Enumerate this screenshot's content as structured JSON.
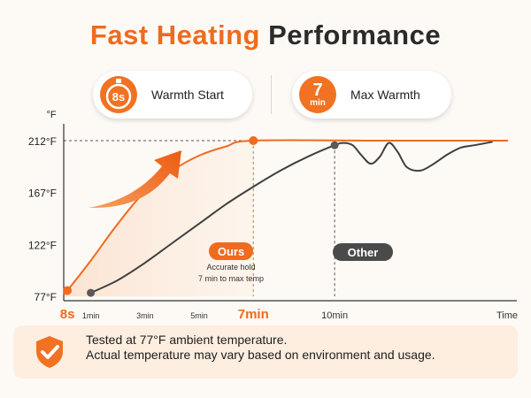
{
  "header": {
    "title_accent": "Fast Heating",
    "title_rest": "Performance"
  },
  "badges": {
    "warmth_start": {
      "icon_text": "8s",
      "label": "Warmth Start"
    },
    "max_warmth": {
      "icon_big": "7",
      "icon_small": "min",
      "label": "Max Warmth"
    }
  },
  "chart_data": {
    "type": "line",
    "ylabel": "°F",
    "xlabel": "Time",
    "yticks": [
      {
        "value": 77,
        "label": "77°F"
      },
      {
        "value": 122,
        "label": "122°F"
      },
      {
        "value": 167,
        "label": "167°F"
      },
      {
        "value": 212,
        "label": "212°F"
      }
    ],
    "ylim": [
      77,
      212
    ],
    "xticks": [
      {
        "value": 8,
        "label": "8s",
        "emphasis": "orange"
      },
      {
        "value": 60,
        "label": "1min"
      },
      {
        "value": 180,
        "label": "3min"
      },
      {
        "value": 300,
        "label": "5min"
      },
      {
        "value": 420,
        "label": "7min",
        "emphasis": "orange"
      },
      {
        "value": 600,
        "label": "10min"
      }
    ],
    "series": [
      {
        "name": "Ours",
        "color": "#ef6b1e",
        "points": [
          [
            0,
            79
          ],
          [
            8,
            82
          ],
          [
            60,
            108
          ],
          [
            120,
            140
          ],
          [
            180,
            168
          ],
          [
            240,
            186
          ],
          [
            300,
            199
          ],
          [
            360,
            207
          ],
          [
            420,
            212
          ],
          [
            700,
            212
          ],
          [
            984,
            212
          ]
        ],
        "markers": [
          [
            8,
            82
          ],
          [
            420,
            212
          ]
        ]
      },
      {
        "name": "Other",
        "color": "#3f3f3f",
        "points": [
          [
            60,
            80
          ],
          [
            120,
            91
          ],
          [
            180,
            106
          ],
          [
            240,
            123
          ],
          [
            300,
            140
          ],
          [
            360,
            157
          ],
          [
            420,
            172
          ],
          [
            480,
            186
          ],
          [
            540,
            198
          ],
          [
            600,
            208
          ],
          [
            620,
            210
          ],
          [
            640,
            208
          ],
          [
            660,
            199
          ],
          [
            680,
            192
          ],
          [
            700,
            198
          ],
          [
            720,
            210
          ],
          [
            740,
            202
          ],
          [
            760,
            189
          ],
          [
            790,
            186
          ],
          [
            820,
            192
          ],
          [
            850,
            200
          ],
          [
            880,
            206
          ],
          [
            910,
            208
          ],
          [
            950,
            211
          ]
        ],
        "markers": [
          [
            60,
            80
          ],
          [
            600,
            208
          ]
        ]
      }
    ],
    "annotations": [
      {
        "label": "Ours",
        "note_line1": "Accurate hold",
        "note_line2": "7 min to max temp",
        "color": "#ef6b1e"
      },
      {
        "label": "Other",
        "color": "#4a4a4a"
      }
    ],
    "reference_lines": [
      {
        "type": "horizontal",
        "value": 212,
        "style": "dashed"
      },
      {
        "type": "vertical",
        "value": 420,
        "style": "dashed",
        "color": "#ef6b1e"
      },
      {
        "type": "vertical",
        "value": 600,
        "style": "dashed"
      }
    ],
    "grid": false
  },
  "footer": {
    "line1": "Tested at 77°F ambient temperature.",
    "line2": "Actual temperature may vary based on environment and usage."
  },
  "colors": {
    "accent": "#ef6b1e",
    "dark": "#2b2b2b",
    "fill": "#fbe4d3"
  }
}
